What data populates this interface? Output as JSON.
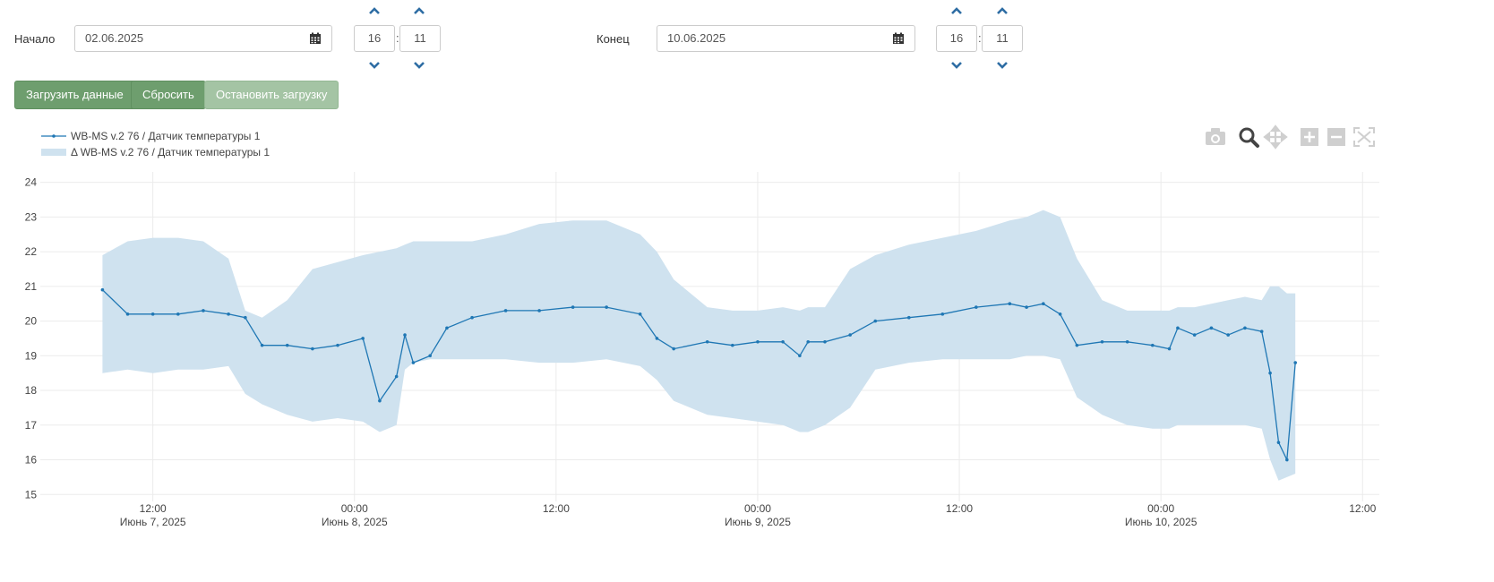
{
  "form": {
    "start_label": "Начало",
    "start_date": "02.06.2025",
    "start_hour": "16",
    "start_minute": "11",
    "end_label": "Конец",
    "end_date": "10.06.2025",
    "end_hour": "16",
    "end_minute": "11",
    "time_separator": ":"
  },
  "buttons": {
    "load": "Загрузить данные",
    "reset": "Сбросить",
    "stop": "Остановить загрузку"
  },
  "toolbar": {
    "icons": [
      "camera-icon",
      "zoom-icon",
      "pan-icon",
      "zoom-in-icon",
      "zoom-out-icon",
      "autoscale-icon"
    ]
  },
  "colors": {
    "line": "#1f77b4",
    "band": "#cfe2ef",
    "button": "#6e9e6e",
    "button_disabled": "#a4c4a4",
    "chevron": "#2e6da4"
  },
  "chart_data": {
    "type": "line",
    "legend": [
      "WB-MS v.2 76 / Датчик температуры 1",
      "Δ WB-MS v.2 76 / Датчик температуры 1"
    ],
    "y_ticks": [
      15,
      16,
      17,
      18,
      19,
      20,
      21,
      22,
      23,
      24
    ],
    "ylim": [
      14.8,
      24.3
    ],
    "x_ticks": [
      {
        "time": "12:00",
        "date": "Июнь 7, 2025"
      },
      {
        "time": "00:00",
        "date": "Июнь 8, 2025"
      },
      {
        "time": "12:00",
        "date": ""
      },
      {
        "time": "00:00",
        "date": "Июнь 9, 2025"
      },
      {
        "time": "12:00",
        "date": ""
      },
      {
        "time": "00:00",
        "date": "Июнь 10, 2025"
      },
      {
        "time": "12:00",
        "date": ""
      }
    ],
    "x_tick_hours": [
      12,
      24,
      36,
      48,
      60,
      72,
      84
    ],
    "xlim_hours": [
      5.3,
      85.0
    ],
    "series": [
      {
        "name": "WB-MS v.2 76 / Датчик температуры 1",
        "hours": [
          9.0,
          10.5,
          12.0,
          13.5,
          15.0,
          16.5,
          17.5,
          18.5,
          20.0,
          21.5,
          23.0,
          24.5,
          25.5,
          26.5,
          27.0,
          27.5,
          28.5,
          29.5,
          31.0,
          33.0,
          35.0,
          37.0,
          39.0,
          41.0,
          42.0,
          43.0,
          45.0,
          46.5,
          48.0,
          49.5,
          50.5,
          51.0,
          52.0,
          53.5,
          55.0,
          57.0,
          59.0,
          61.0,
          63.0,
          64.0,
          65.0,
          66.0,
          67.0,
          68.5,
          70.0,
          71.5,
          72.5,
          73.0,
          74.0,
          75.0,
          76.0,
          77.0,
          78.0,
          78.5,
          79.0,
          79.5,
          80.0
        ],
        "values": [
          20.9,
          20.2,
          20.2,
          20.2,
          20.3,
          20.2,
          20.1,
          19.3,
          19.3,
          19.2,
          19.3,
          19.5,
          17.7,
          18.4,
          19.6,
          18.8,
          19.0,
          19.8,
          20.1,
          20.3,
          20.3,
          20.4,
          20.4,
          20.2,
          19.5,
          19.2,
          19.4,
          19.3,
          19.4,
          19.4,
          19.0,
          19.4,
          19.4,
          19.6,
          20.0,
          20.1,
          20.2,
          20.4,
          20.5,
          20.4,
          20.5,
          20.2,
          19.3,
          19.4,
          19.4,
          19.3,
          19.2,
          19.8,
          19.6,
          19.8,
          19.6,
          19.8,
          19.7,
          18.5,
          16.5,
          16.0,
          18.8
        ],
        "ranges": [
          [
            18.5,
            21.9
          ],
          [
            18.6,
            22.3
          ],
          [
            18.5,
            22.4
          ],
          [
            18.6,
            22.4
          ],
          [
            18.6,
            22.3
          ],
          [
            18.7,
            21.8
          ],
          [
            17.9,
            20.3
          ],
          [
            17.6,
            20.1
          ],
          [
            17.3,
            20.6
          ],
          [
            17.1,
            21.5
          ],
          [
            17.2,
            21.7
          ],
          [
            17.1,
            21.9
          ],
          [
            16.8,
            22.0
          ],
          [
            17.0,
            22.1
          ],
          [
            18.6,
            22.2
          ],
          [
            18.8,
            22.3
          ],
          [
            18.9,
            22.3
          ],
          [
            18.9,
            22.3
          ],
          [
            18.9,
            22.3
          ],
          [
            18.9,
            22.5
          ],
          [
            18.8,
            22.8
          ],
          [
            18.8,
            22.9
          ],
          [
            18.9,
            22.9
          ],
          [
            18.7,
            22.5
          ],
          [
            18.3,
            22.0
          ],
          [
            17.7,
            21.2
          ],
          [
            17.3,
            20.4
          ],
          [
            17.2,
            20.3
          ],
          [
            17.1,
            20.3
          ],
          [
            17.0,
            20.4
          ],
          [
            16.8,
            20.3
          ],
          [
            16.8,
            20.4
          ],
          [
            17.0,
            20.4
          ],
          [
            17.5,
            21.5
          ],
          [
            18.6,
            21.9
          ],
          [
            18.8,
            22.2
          ],
          [
            18.9,
            22.4
          ],
          [
            18.9,
            22.6
          ],
          [
            18.9,
            22.9
          ],
          [
            19.0,
            23.0
          ],
          [
            19.0,
            23.2
          ],
          [
            18.9,
            23.0
          ],
          [
            17.8,
            21.8
          ],
          [
            17.3,
            20.6
          ],
          [
            17.0,
            20.3
          ],
          [
            16.9,
            20.3
          ],
          [
            16.9,
            20.3
          ],
          [
            17.0,
            20.4
          ],
          [
            17.0,
            20.4
          ],
          [
            17.0,
            20.5
          ],
          [
            17.0,
            20.6
          ],
          [
            17.0,
            20.7
          ],
          [
            16.9,
            20.6
          ],
          [
            16.0,
            21.0
          ],
          [
            15.4,
            21.0
          ],
          [
            15.5,
            20.8
          ],
          [
            15.6,
            20.8
          ]
        ]
      }
    ]
  }
}
